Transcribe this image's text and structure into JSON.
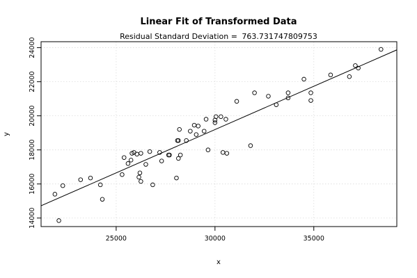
{
  "chart_data": {
    "type": "scatter",
    "title": "Linear Fit of Transformed Data",
    "subtitle_prefix": "Residual Standard Deviation = ",
    "subtitle_value": "763.731747809753",
    "xlabel": "x",
    "ylabel": "y",
    "xlim": [
      21200,
      39200
    ],
    "ylim": [
      13500,
      24350
    ],
    "xticks": [
      25000,
      30000,
      35000
    ],
    "yticks": [
      14000,
      16000,
      18000,
      20000,
      22000,
      24000
    ],
    "grid": true,
    "fit_line": {
      "x": [
        21200,
        39200
      ],
      "y": [
        14720,
        23870
      ]
    },
    "points": [
      {
        "x": 21900,
        "y": 15400
      },
      {
        "x": 22100,
        "y": 13850
      },
      {
        "x": 22300,
        "y": 15900
      },
      {
        "x": 23200,
        "y": 16250
      },
      {
        "x": 23700,
        "y": 16350
      },
      {
        "x": 24200,
        "y": 15950
      },
      {
        "x": 24300,
        "y": 15100
      },
      {
        "x": 25300,
        "y": 16550
      },
      {
        "x": 25400,
        "y": 17550
      },
      {
        "x": 25600,
        "y": 17200
      },
      {
        "x": 25750,
        "y": 17400
      },
      {
        "x": 25800,
        "y": 17800
      },
      {
        "x": 25900,
        "y": 17850
      },
      {
        "x": 26050,
        "y": 17750
      },
      {
        "x": 26200,
        "y": 16650
      },
      {
        "x": 26150,
        "y": 16400
      },
      {
        "x": 26250,
        "y": 17800
      },
      {
        "x": 26250,
        "y": 16150
      },
      {
        "x": 26500,
        "y": 17150
      },
      {
        "x": 26700,
        "y": 17900
      },
      {
        "x": 26850,
        "y": 15950
      },
      {
        "x": 27200,
        "y": 17850
      },
      {
        "x": 27300,
        "y": 17350
      },
      {
        "x": 27650,
        "y": 17700
      },
      {
        "x": 27700,
        "y": 17700
      },
      {
        "x": 28050,
        "y": 16350
      },
      {
        "x": 28100,
        "y": 18550
      },
      {
        "x": 28150,
        "y": 18550
      },
      {
        "x": 28150,
        "y": 17500
      },
      {
        "x": 28200,
        "y": 19200
      },
      {
        "x": 28250,
        "y": 17700
      },
      {
        "x": 28550,
        "y": 18550
      },
      {
        "x": 28750,
        "y": 19100
      },
      {
        "x": 28950,
        "y": 19450
      },
      {
        "x": 29050,
        "y": 18900
      },
      {
        "x": 29150,
        "y": 19400
      },
      {
        "x": 29450,
        "y": 19100
      },
      {
        "x": 29550,
        "y": 19800
      },
      {
        "x": 29650,
        "y": 18000
      },
      {
        "x": 30000,
        "y": 19750
      },
      {
        "x": 30000,
        "y": 19600
      },
      {
        "x": 30050,
        "y": 19950
      },
      {
        "x": 30300,
        "y": 19950
      },
      {
        "x": 30400,
        "y": 17850
      },
      {
        "x": 30550,
        "y": 19800
      },
      {
        "x": 30600,
        "y": 17800
      },
      {
        "x": 31100,
        "y": 20850
      },
      {
        "x": 31800,
        "y": 18250
      },
      {
        "x": 32000,
        "y": 21350
      },
      {
        "x": 32700,
        "y": 21150
      },
      {
        "x": 33100,
        "y": 20650
      },
      {
        "x": 33700,
        "y": 21350
      },
      {
        "x": 33700,
        "y": 21050
      },
      {
        "x": 34500,
        "y": 22150
      },
      {
        "x": 34850,
        "y": 21350
      },
      {
        "x": 34850,
        "y": 20900
      },
      {
        "x": 35850,
        "y": 22400
      },
      {
        "x": 36800,
        "y": 22300
      },
      {
        "x": 37100,
        "y": 22950
      },
      {
        "x": 37250,
        "y": 22800
      },
      {
        "x": 38400,
        "y": 23900
      }
    ]
  }
}
